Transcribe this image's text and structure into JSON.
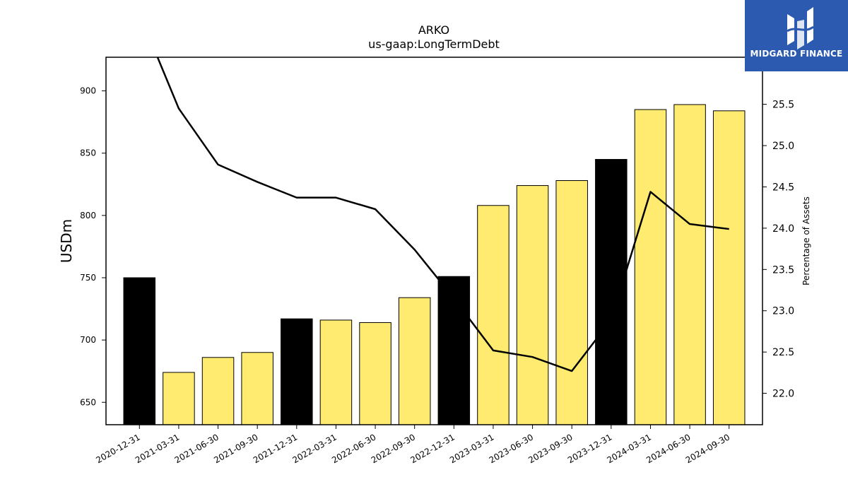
{
  "chart_data": {
    "type": "bar",
    "title": "ARKO",
    "subtitle": "us-gaap:LongTermDebt",
    "ylabel": "USDm",
    "ylabel_right": "Percentage of Assets",
    "categories": [
      "2020-12-31",
      "2021-03-31",
      "2021-06-30",
      "2021-09-30",
      "2021-12-31",
      "2022-03-31",
      "2022-06-30",
      "2022-09-30",
      "2022-12-31",
      "2023-03-31",
      "2023-06-30",
      "2023-09-30",
      "2023-12-31",
      "2024-03-31",
      "2024-06-30",
      "2024-09-30"
    ],
    "series": [
      {
        "type": "bar",
        "axis": "left",
        "values": [
          750,
          674,
          686,
          690,
          717,
          716,
          714,
          734,
          751,
          808,
          824,
          828,
          845,
          885,
          889,
          884
        ],
        "colors": [
          "#000000",
          "#ffeb70",
          "#ffeb70",
          "#ffeb70",
          "#000000",
          "#ffeb70",
          "#ffeb70",
          "#ffeb70",
          "#000000",
          "#ffeb70",
          "#ffeb70",
          "#ffeb70",
          "#000000",
          "#ffeb70",
          "#ffeb70",
          "#ffeb70"
        ]
      },
      {
        "type": "line",
        "axis": "right",
        "color": "#000000",
        "values": [
          26.6,
          25.45,
          24.77,
          24.56,
          24.37,
          24.37,
          24.23,
          23.74,
          23.15,
          22.52,
          22.44,
          22.27,
          22.89,
          24.44,
          24.05,
          23.99
        ]
      }
    ],
    "ylim": [
      632,
      927
    ],
    "ylim_right": [
      21.62,
      26.07
    ],
    "yticks": [
      650,
      700,
      750,
      800,
      850,
      900
    ],
    "yticks_right": [
      "22.0",
      "22.5",
      "23.0",
      "23.5",
      "24.0",
      "24.5",
      "25.0",
      "25.5"
    ]
  },
  "logo": {
    "text": "MIDGARD FINANCE",
    "color": "#2b5ab0"
  }
}
